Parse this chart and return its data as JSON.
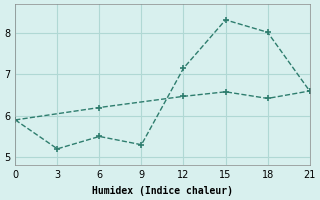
{
  "xlabel": "Humidex (Indice chaleur)",
  "line1_x": [
    0,
    3,
    6,
    9,
    12,
    15,
    18,
    21
  ],
  "line1_y": [
    5.9,
    5.2,
    5.5,
    5.3,
    7.15,
    8.32,
    8.02,
    6.6
  ],
  "line2_x": [
    0,
    6,
    12,
    15,
    18,
    21
  ],
  "line2_y": [
    5.9,
    6.2,
    6.47,
    6.58,
    6.42,
    6.6
  ],
  "line_color": "#2e7d6e",
  "bg_color": "#d8f0ee",
  "grid_color": "#b0d8d4",
  "xlim": [
    0,
    21
  ],
  "ylim": [
    4.8,
    8.7
  ],
  "xticks": [
    0,
    3,
    6,
    9,
    12,
    15,
    18,
    21
  ],
  "yticks": [
    5,
    6,
    7,
    8
  ]
}
